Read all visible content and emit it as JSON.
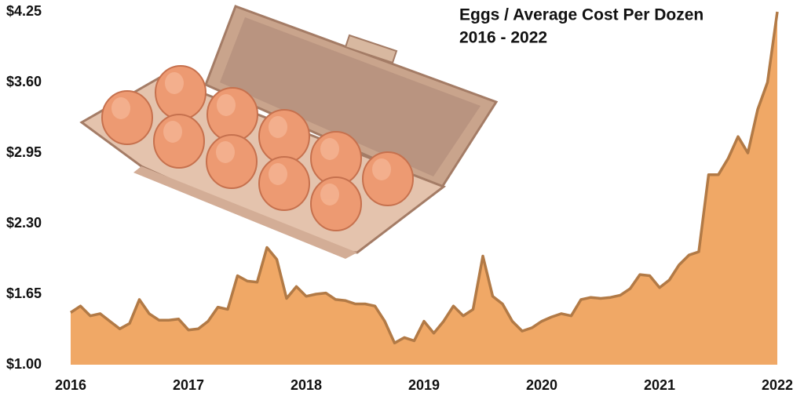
{
  "chart_data": {
    "type": "area",
    "title": "Eggs / Average Cost Per Dozen",
    "subtitle": "2016 - 2022",
    "color": "#f0a866",
    "line_color": "#b27a46",
    "x": [
      2016,
      2016.083,
      2016.167,
      2016.25,
      2016.333,
      2016.417,
      2016.5,
      2016.583,
      2016.667,
      2016.75,
      2016.833,
      2016.917,
      2017,
      2017.083,
      2017.167,
      2017.25,
      2017.333,
      2017.417,
      2017.5,
      2017.583,
      2017.667,
      2017.75,
      2017.833,
      2017.917,
      2018,
      2018.083,
      2018.167,
      2018.25,
      2018.333,
      2018.417,
      2018.5,
      2018.583,
      2018.667,
      2018.75,
      2018.833,
      2018.917,
      2019,
      2019.083,
      2019.167,
      2019.25,
      2019.333,
      2019.417,
      2019.5,
      2019.583,
      2019.667,
      2019.75,
      2019.833,
      2019.917,
      2020,
      2020.083,
      2020.167,
      2020.25,
      2020.333,
      2020.417,
      2020.5,
      2020.583,
      2020.667,
      2020.75,
      2020.833,
      2020.917,
      2021,
      2021.083,
      2021.167,
      2021.25,
      2021.333,
      2021.417,
      2021.5,
      2021.583,
      2021.667,
      2021.75,
      2021.833,
      2021.917,
      2022
    ],
    "values": [
      1.48,
      1.54,
      1.45,
      1.47,
      1.4,
      1.33,
      1.38,
      1.6,
      1.47,
      1.41,
      1.41,
      1.42,
      1.32,
      1.33,
      1.4,
      1.53,
      1.51,
      1.82,
      1.77,
      1.76,
      2.08,
      1.97,
      1.61,
      1.72,
      1.63,
      1.65,
      1.66,
      1.6,
      1.59,
      1.56,
      1.56,
      1.54,
      1.4,
      1.2,
      1.25,
      1.22,
      1.4,
      1.29,
      1.4,
      1.54,
      1.45,
      1.51,
      2.0,
      1.63,
      1.56,
      1.4,
      1.31,
      1.34,
      1.4,
      1.44,
      1.47,
      1.45,
      1.6,
      1.62,
      1.61,
      1.62,
      1.64,
      1.7,
      1.83,
      1.82,
      1.71,
      1.78,
      1.92,
      2.01,
      2.04,
      2.75,
      2.75,
      2.9,
      3.1,
      2.95,
      3.35,
      3.6,
      4.25
    ],
    "xlim": [
      2016,
      2022
    ],
    "xticks": [
      2016,
      2017,
      2018,
      2019,
      2020,
      2021,
      2022
    ],
    "ylim": [
      1,
      4.25
    ],
    "yticks": [
      {
        "value": 1,
        "label": "$1.00"
      },
      {
        "value": 1.65,
        "label": "$1.65"
      },
      {
        "value": 2.3,
        "label": "$2.30"
      },
      {
        "value": 2.95,
        "label": "$2.95"
      },
      {
        "value": 3.6,
        "label": "$3.60"
      },
      {
        "value": 4.25,
        "label": "$4.25"
      }
    ]
  }
}
